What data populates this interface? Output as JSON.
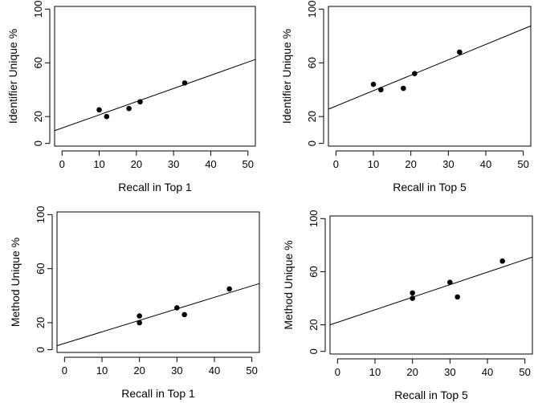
{
  "chart_data": [
    {
      "type": "scatter",
      "xlabel": "Recall in Top 1",
      "ylabel": "Identifier Unique %",
      "xlim": [
        -2,
        52
      ],
      "ylim": [
        -2,
        102
      ],
      "xticks": [
        0,
        10,
        20,
        30,
        40,
        50
      ],
      "yticks": [
        0,
        20,
        60,
        100
      ],
      "points": [
        {
          "x": 10,
          "y": 25
        },
        {
          "x": 12,
          "y": 20
        },
        {
          "x": 18,
          "y": 26
        },
        {
          "x": 21,
          "y": 31
        },
        {
          "x": 33,
          "y": 45
        }
      ],
      "fit_line": {
        "x": [
          -2,
          52
        ],
        "y": [
          9.5,
          62.5
        ]
      },
      "grid": false,
      "legend": false
    },
    {
      "type": "scatter",
      "xlabel": "Recall in Top 5",
      "ylabel": "Identifier Unique %",
      "xlim": [
        -2,
        52
      ],
      "ylim": [
        -2,
        102
      ],
      "xticks": [
        0,
        10,
        20,
        30,
        40,
        50
      ],
      "yticks": [
        0,
        20,
        60,
        100
      ],
      "points": [
        {
          "x": 10,
          "y": 44
        },
        {
          "x": 12,
          "y": 40
        },
        {
          "x": 18,
          "y": 41
        },
        {
          "x": 21,
          "y": 52
        },
        {
          "x": 33,
          "y": 68
        }
      ],
      "fit_line": {
        "x": [
          -2,
          52
        ],
        "y": [
          25.5,
          87.5
        ]
      },
      "grid": false,
      "legend": false
    },
    {
      "type": "scatter",
      "xlabel": "Recall in Top 1",
      "ylabel": "Method Unique %",
      "xlim": [
        -2,
        52
      ],
      "ylim": [
        -2,
        102
      ],
      "xticks": [
        0,
        10,
        20,
        30,
        40,
        50
      ],
      "yticks": [
        0,
        20,
        60,
        100
      ],
      "points": [
        {
          "x": 20,
          "y": 25
        },
        {
          "x": 20,
          "y": 20
        },
        {
          "x": 30,
          "y": 31
        },
        {
          "x": 32,
          "y": 26
        },
        {
          "x": 44,
          "y": 45
        }
      ],
      "fit_line": {
        "x": [
          -2,
          52
        ],
        "y": [
          3,
          49
        ]
      },
      "grid": false,
      "legend": false
    },
    {
      "type": "scatter",
      "xlabel": "Recall in Top 5",
      "ylabel": "Method Unique %",
      "xlim": [
        -2,
        52
      ],
      "ylim": [
        -2,
        102
      ],
      "xticks": [
        0,
        10,
        20,
        30,
        40,
        50
      ],
      "yticks": [
        0,
        20,
        60,
        100
      ],
      "points": [
        {
          "x": 20,
          "y": 44
        },
        {
          "x": 20,
          "y": 40
        },
        {
          "x": 30,
          "y": 52
        },
        {
          "x": 32,
          "y": 41
        },
        {
          "x": 44,
          "y": 68
        }
      ],
      "fit_line": {
        "x": [
          -2,
          52
        ],
        "y": [
          20,
          71
        ]
      },
      "grid": false,
      "legend": false
    }
  ]
}
